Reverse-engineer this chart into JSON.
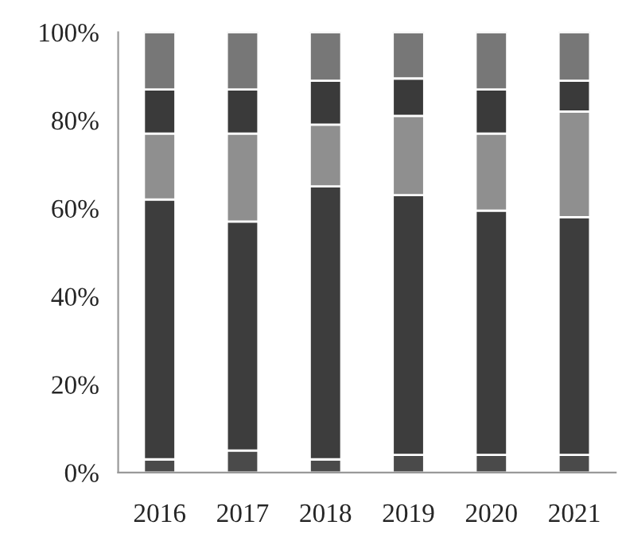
{
  "chart_data": {
    "type": "bar",
    "stacked": true,
    "categories": [
      "2016",
      "2017",
      "2018",
      "2019",
      "2020",
      "2021"
    ],
    "series": [
      {
        "color": "#4a4a4a",
        "values": [
          3,
          5,
          3,
          4,
          4,
          4
        ]
      },
      {
        "color": "#3d3d3d",
        "values": [
          59,
          52,
          62,
          59,
          55.5,
          54
        ]
      },
      {
        "color": "#8f8f8f",
        "values": [
          15,
          20,
          14,
          18,
          17.5,
          24
        ]
      },
      {
        "color": "#3a3a3a",
        "values": [
          10,
          10,
          10,
          8.5,
          10,
          7
        ]
      },
      {
        "color": "#777777",
        "values": [
          13,
          13,
          11,
          10.5,
          13,
          11
        ]
      }
    ],
    "ylim": [
      0,
      100
    ],
    "yticks": [
      {
        "value": 0,
        "label": "0%"
      },
      {
        "value": 20,
        "label": "20%"
      },
      {
        "value": 40,
        "label": "40%"
      },
      {
        "value": 60,
        "label": "60%"
      },
      {
        "value": 80,
        "label": "80%"
      },
      {
        "value": 100,
        "label": "100%"
      }
    ],
    "grid": false,
    "legend": false
  }
}
